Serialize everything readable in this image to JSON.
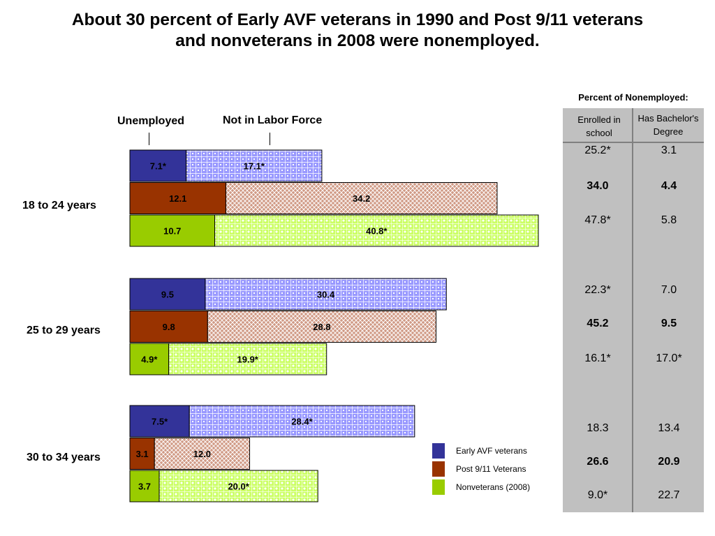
{
  "title_line1": "About 30 percent of Early AVF veterans in 1990 and Post 9/11 veterans",
  "title_line2": "and nonveterans in 2008 were nonemployed.",
  "header_unemployed": "Unemployed",
  "header_not_in_labor_force": "Not in Labor Force",
  "colors": {
    "early_avf": "#333399",
    "post911": "#993300",
    "nonveterans": "#99cc00",
    "early_avf_nilf": "#9999ff",
    "post911_nilf": "#cc9980",
    "nonveterans_nilf": "#ccff66",
    "panel": "#c0c0c0"
  },
  "chart_data": {
    "type": "bar",
    "orientation": "horizontal",
    "stacked": true,
    "categories": [
      "18 to 24 years",
      "25 to 29 years",
      "30 to 34 years"
    ],
    "series_groups": [
      "Early AVF veterans",
      "Post 9/11 Veterans",
      "Nonveterans (2008)"
    ],
    "groups": [
      {
        "label": "18 to 24 years",
        "bars": [
          {
            "series": "Early AVF veterans",
            "unemployed": 7.1,
            "unemployed_label": "7.1*",
            "nilf": 17.1,
            "nilf_label": "17.1*"
          },
          {
            "series": "Post 9/11 Veterans",
            "unemployed": 12.1,
            "unemployed_label": "12.1",
            "nilf": 34.2,
            "nilf_label": "34.2"
          },
          {
            "series": "Nonveterans (2008)",
            "unemployed": 10.7,
            "unemployed_label": "10.7",
            "nilf": 40.8,
            "nilf_label": "40.8*"
          }
        ]
      },
      {
        "label": "25 to 29 years",
        "bars": [
          {
            "series": "Early AVF veterans",
            "unemployed": 9.5,
            "unemployed_label": "9.5",
            "nilf": 30.4,
            "nilf_label": "30.4"
          },
          {
            "series": "Post 9/11 Veterans",
            "unemployed": 9.8,
            "unemployed_label": "9.8",
            "nilf": 28.8,
            "nilf_label": "28.8"
          },
          {
            "series": "Nonveterans (2008)",
            "unemployed": 4.9,
            "unemployed_label": "4.9*",
            "nilf": 19.9,
            "nilf_label": "19.9*"
          }
        ]
      },
      {
        "label": "30 to 34 years",
        "bars": [
          {
            "series": "Early AVF veterans",
            "unemployed": 7.5,
            "unemployed_label": "7.5*",
            "nilf": 28.4,
            "nilf_label": "28.4*"
          },
          {
            "series": "Post 9/11 Veterans",
            "unemployed": 3.1,
            "unemployed_label": "3.1",
            "nilf": 12.0,
            "nilf_label": "12.0"
          },
          {
            "series": "Nonveterans (2008)",
            "unemployed": 3.7,
            "unemployed_label": "3.7",
            "nilf": 20.0,
            "nilf_label": "20.0*"
          }
        ]
      }
    ]
  },
  "legend": [
    "Early AVF veterans",
    "Post 9/11 Veterans",
    "Nonveterans (2008)"
  ],
  "side_table": {
    "title": "Percent of Nonemployed:",
    "col1_header": "Enrolled in school",
    "col2_header": "Has Bachelor's Degree",
    "rows": [
      {
        "enrolled": "25.2*",
        "bachelors": "3.1",
        "bold": false
      },
      {
        "enrolled": "34.0",
        "bachelors": "4.4",
        "bold": true
      },
      {
        "enrolled": "47.8*",
        "bachelors": "5.8",
        "bold": false
      },
      {
        "enrolled": "22.3*",
        "bachelors": "7.0",
        "bold": false
      },
      {
        "enrolled": "45.2",
        "bachelors": "9.5",
        "bold": true
      },
      {
        "enrolled": "16.1*",
        "bachelors": "17.0*",
        "bold": false
      },
      {
        "enrolled": "18.3",
        "bachelors": "13.4",
        "bold": false
      },
      {
        "enrolled": "26.6",
        "bachelors": "20.9",
        "bold": true
      },
      {
        "enrolled": "9.0*",
        "bachelors": "22.7",
        "bold": false
      }
    ]
  }
}
